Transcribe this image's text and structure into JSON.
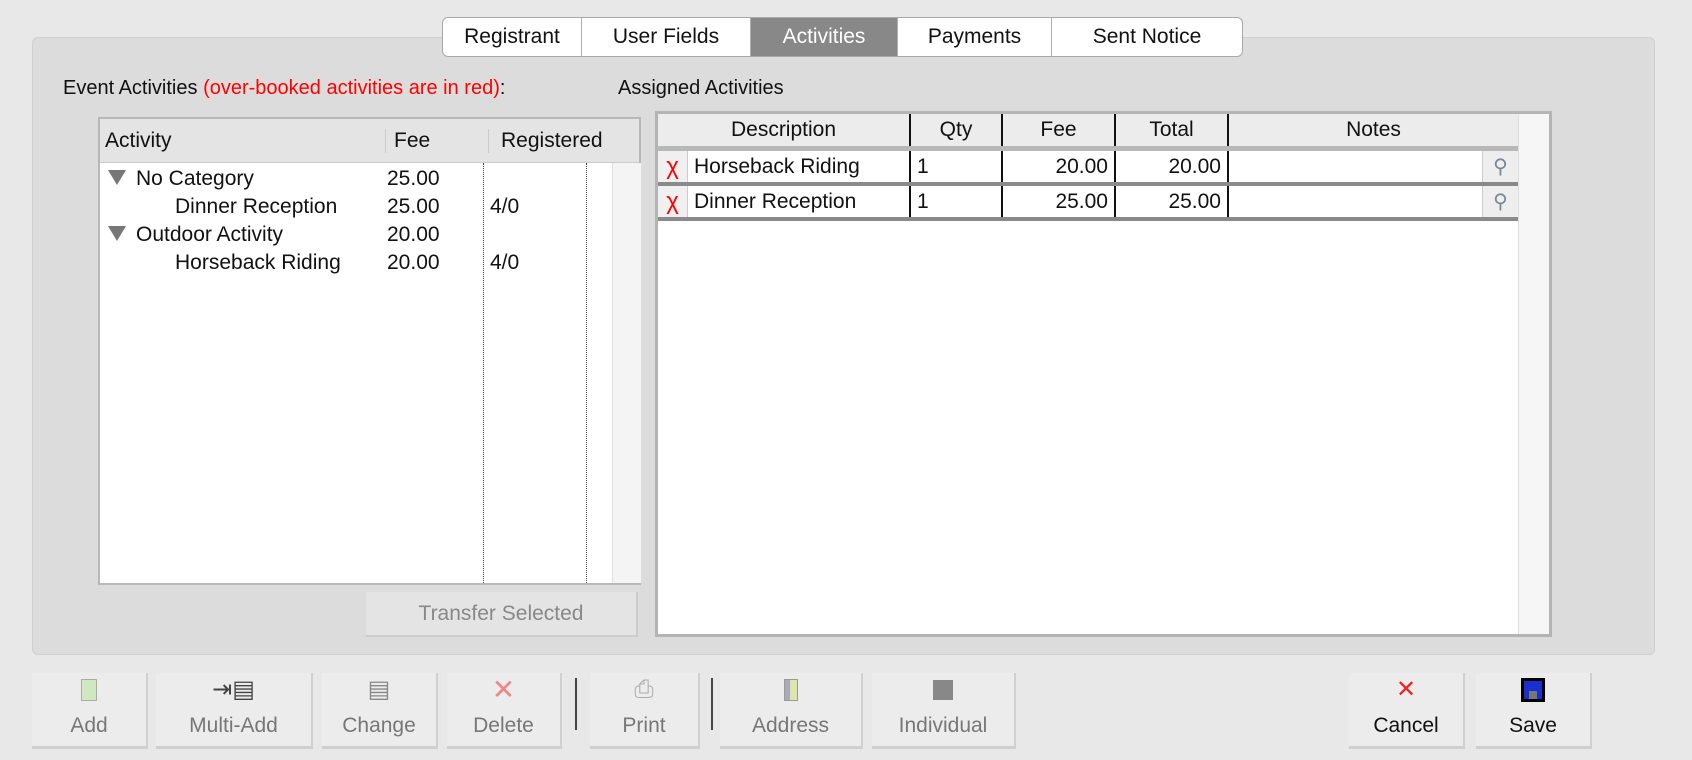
{
  "tabs": [
    {
      "label": "Registrant"
    },
    {
      "label": "User Fields"
    },
    {
      "label": "Activities",
      "active": true
    },
    {
      "label": "Payments"
    },
    {
      "label": "Sent Notice"
    }
  ],
  "event_activities": {
    "label": "Event Activities",
    "note": "(over-booked activities are in red)",
    "colon": ":",
    "columns": [
      "Activity",
      "Fee",
      "Registered"
    ],
    "rows": [
      {
        "name": "No Category",
        "fee": "25.00",
        "registered": "",
        "category": true
      },
      {
        "name": "Dinner Reception",
        "fee": "25.00",
        "registered": "4/0",
        "category": false
      },
      {
        "name": "Outdoor Activity",
        "fee": "20.00",
        "registered": "",
        "category": true
      },
      {
        "name": "Horseback Riding",
        "fee": "20.00",
        "registered": "4/0",
        "category": false
      }
    ],
    "transfer_label": "Transfer Selected"
  },
  "assigned": {
    "label": "Assigned Activities",
    "columns": [
      "Description",
      "Qty",
      "Fee",
      "Total",
      "Notes"
    ],
    "rows": [
      {
        "description": "Horseback Riding",
        "qty": "1",
        "fee": "20.00",
        "total": "20.00",
        "notes": ""
      },
      {
        "description": "Dinner Reception",
        "qty": "1",
        "fee": "25.00",
        "total": "25.00",
        "notes": ""
      }
    ]
  },
  "toolbar": {
    "add": "Add",
    "multi_add": "Multi-Add",
    "change": "Change",
    "delete": "Delete",
    "print": "Print",
    "address": "Address",
    "individual": "Individual",
    "cancel": "Cancel",
    "save": "Save"
  },
  "colors": {
    "accent_red": "#ff0000",
    "active_tab": "#888888"
  }
}
